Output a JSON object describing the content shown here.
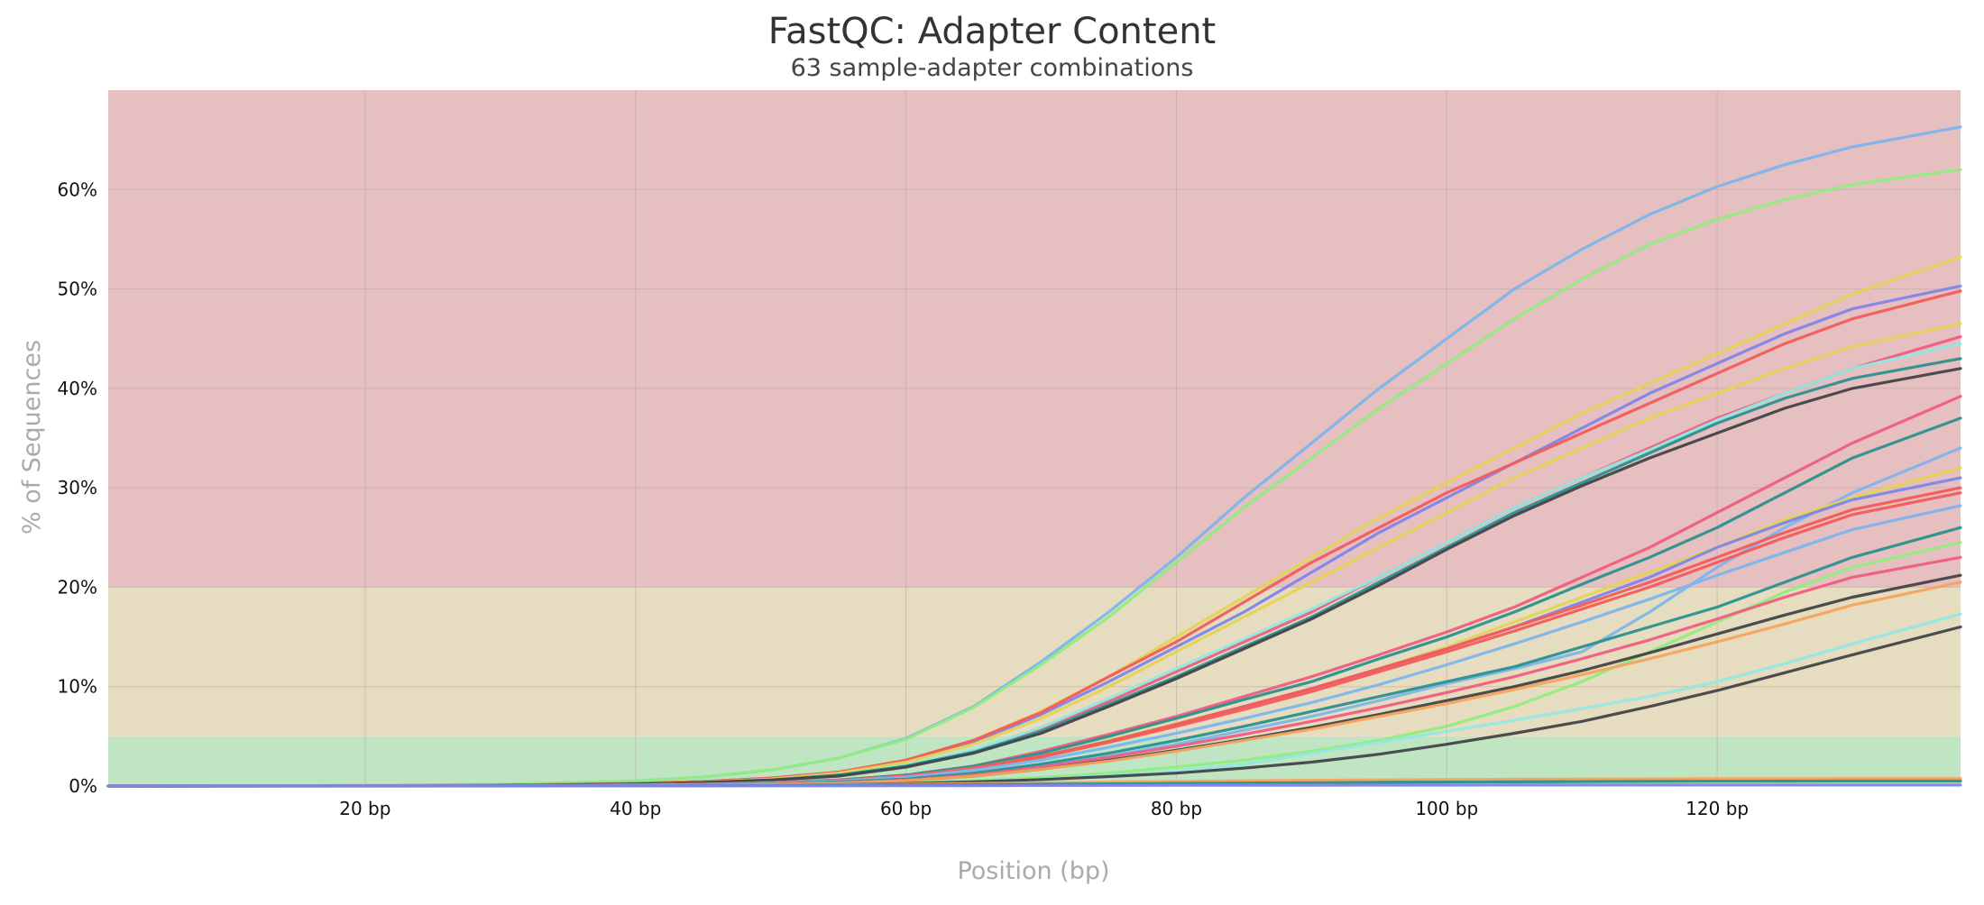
{
  "chart_data": {
    "type": "line",
    "title": "FastQC: Adapter Content",
    "subtitle": "63 sample-adapter combinations",
    "xlabel": "Position (bp)",
    "ylabel": "% of Sequences",
    "xlim": [
      1,
      138
    ],
    "ylim": [
      0,
      70
    ],
    "x_ticks": [
      20,
      40,
      60,
      80,
      100,
      120
    ],
    "x_tick_labels": [
      "20 bp",
      "40 bp",
      "60 bp",
      "80 bp",
      "100 bp",
      "120 bp"
    ],
    "y_ticks": [
      0,
      10,
      20,
      30,
      40,
      50,
      60
    ],
    "y_tick_labels": [
      "0%",
      "10%",
      "20%",
      "30%",
      "40%",
      "50%",
      "60%"
    ],
    "grid": true,
    "legend": "none",
    "bands": [
      {
        "from": 0,
        "to": 5,
        "color": "#c0e5c3"
      },
      {
        "from": 5,
        "to": 20,
        "color": "#e6dcbf"
      },
      {
        "from": 20,
        "to": 70,
        "color": "#e6bfc0"
      }
    ],
    "x": [
      1,
      10,
      20,
      30,
      40,
      45,
      50,
      55,
      60,
      65,
      70,
      75,
      80,
      85,
      90,
      95,
      100,
      105,
      110,
      115,
      120,
      125,
      130,
      138
    ],
    "series": [
      {
        "color": "#7cb5ec",
        "values": [
          0,
          0.02,
          0.05,
          0.15,
          0.5,
          0.9,
          1.6,
          2.8,
          4.8,
          8.0,
          12.5,
          17.5,
          23.0,
          29.0,
          34.5,
          40.0,
          45.0,
          50.0,
          54.0,
          57.5,
          60.3,
          62.5,
          64.3,
          66.3
        ]
      },
      {
        "color": "#90ed7d",
        "values": [
          0,
          0.02,
          0.05,
          0.15,
          0.5,
          0.9,
          1.6,
          2.8,
          4.7,
          7.9,
          12.2,
          17.0,
          22.5,
          28.0,
          33.0,
          38.0,
          42.5,
          47.0,
          51.0,
          54.5,
          57.0,
          59.0,
          60.5,
          62.0
        ]
      },
      {
        "color": "#e4d354",
        "values": [
          0,
          0.01,
          0.03,
          0.08,
          0.25,
          0.45,
          0.8,
          1.4,
          2.6,
          4.6,
          7.5,
          11.0,
          15.0,
          19.0,
          23.0,
          27.0,
          30.5,
          34.0,
          37.5,
          40.5,
          43.5,
          46.5,
          49.5,
          53.2
        ]
      },
      {
        "color": "#8085e9",
        "values": [
          0,
          0.01,
          0.03,
          0.08,
          0.25,
          0.45,
          0.8,
          1.4,
          2.5,
          4.4,
          7.2,
          10.5,
          14.0,
          17.5,
          21.5,
          25.5,
          29.0,
          32.5,
          36.0,
          39.5,
          42.5,
          45.5,
          48.0,
          50.3
        ]
      },
      {
        "color": "#f45b5b",
        "values": [
          0,
          0.01,
          0.03,
          0.08,
          0.25,
          0.45,
          0.8,
          1.4,
          2.6,
          4.6,
          7.4,
          11.0,
          14.5,
          18.5,
          22.5,
          26.0,
          29.5,
          32.5,
          35.5,
          38.5,
          41.5,
          44.5,
          47.0,
          49.8
        ]
      },
      {
        "color": "#e4d354",
        "values": [
          0,
          0.01,
          0.03,
          0.08,
          0.2,
          0.4,
          0.7,
          1.3,
          2.4,
          4.2,
          6.8,
          10.0,
          13.5,
          17.0,
          20.5,
          24.0,
          27.5,
          31.0,
          34.0,
          37.0,
          39.5,
          42.0,
          44.2,
          46.5
        ]
      },
      {
        "color": "#f15c80",
        "values": [
          0,
          0.01,
          0.02,
          0.06,
          0.2,
          0.35,
          0.6,
          1.1,
          2.0,
          3.5,
          5.8,
          8.5,
          11.5,
          14.5,
          17.5,
          21.0,
          24.5,
          28.0,
          31.0,
          34.0,
          37.0,
          39.5,
          42.0,
          45.2
        ]
      },
      {
        "color": "#91e8e1",
        "values": [
          0,
          0.01,
          0.02,
          0.06,
          0.2,
          0.35,
          0.6,
          1.1,
          2.1,
          3.6,
          5.9,
          8.8,
          11.8,
          14.8,
          17.8,
          21.0,
          24.5,
          28.0,
          31.0,
          33.8,
          36.8,
          39.5,
          42.0,
          44.5
        ]
      },
      {
        "color": "#2b908f",
        "values": [
          0,
          0.01,
          0.02,
          0.06,
          0.2,
          0.35,
          0.6,
          1.1,
          2.0,
          3.4,
          5.5,
          8.2,
          11.0,
          14.0,
          17.0,
          20.5,
          24.0,
          27.5,
          30.5,
          33.5,
          36.5,
          39.0,
          41.0,
          43.0
        ]
      },
      {
        "color": "#434348",
        "values": [
          0,
          0.01,
          0.02,
          0.06,
          0.2,
          0.35,
          0.6,
          1.0,
          1.9,
          3.3,
          5.3,
          8.0,
          10.8,
          13.8,
          16.8,
          20.2,
          23.8,
          27.2,
          30.2,
          33.0,
          35.5,
          38.0,
          40.0,
          42.0
        ]
      },
      {
        "color": "#f15c80",
        "values": [
          0,
          0.01,
          0.02,
          0.04,
          0.12,
          0.2,
          0.35,
          0.6,
          1.1,
          2.0,
          3.5,
          5.2,
          7.0,
          9.0,
          11.0,
          13.2,
          15.5,
          18.0,
          21.0,
          24.0,
          27.5,
          31.0,
          34.5,
          39.2
        ]
      },
      {
        "color": "#2b908f",
        "values": [
          0,
          0.01,
          0.02,
          0.04,
          0.12,
          0.2,
          0.35,
          0.6,
          1.1,
          2.0,
          3.3,
          5.0,
          6.8,
          8.7,
          10.5,
          12.8,
          15.0,
          17.5,
          20.3,
          23.0,
          26.0,
          29.5,
          33.0,
          37.0
        ]
      },
      {
        "color": "#7cb5ec",
        "values": [
          0,
          0.01,
          0.01,
          0.03,
          0.08,
          0.15,
          0.25,
          0.4,
          0.7,
          1.2,
          2.0,
          3.0,
          4.2,
          5.6,
          7.0,
          8.6,
          10.3,
          11.8,
          13.5,
          17.5,
          22.0,
          26.0,
          29.5,
          34.0
        ]
      },
      {
        "color": "#e4d354",
        "values": [
          0,
          0.01,
          0.01,
          0.03,
          0.1,
          0.17,
          0.3,
          0.55,
          1.0,
          1.8,
          3.0,
          4.6,
          6.3,
          8.0,
          9.8,
          11.8,
          14.0,
          16.5,
          19.0,
          21.5,
          24.0,
          26.8,
          29.0,
          32.0
        ]
      },
      {
        "color": "#8085e9",
        "values": [
          0,
          0.01,
          0.01,
          0.03,
          0.1,
          0.17,
          0.3,
          0.55,
          1.0,
          1.8,
          3.0,
          4.5,
          6.2,
          8.0,
          9.8,
          11.8,
          13.8,
          16.0,
          18.5,
          21.0,
          24.0,
          26.5,
          28.8,
          31.0
        ]
      },
      {
        "color": "#f45b5b",
        "values": [
          0,
          0.01,
          0.01,
          0.03,
          0.1,
          0.17,
          0.3,
          0.55,
          1.0,
          1.8,
          3.0,
          4.5,
          6.2,
          8.0,
          9.8,
          11.8,
          13.8,
          16.0,
          18.2,
          20.5,
          23.0,
          25.5,
          27.8,
          30.0
        ]
      },
      {
        "color": "#f45b5b",
        "values": [
          0,
          0.01,
          0.01,
          0.03,
          0.1,
          0.17,
          0.3,
          0.55,
          0.95,
          1.7,
          2.9,
          4.4,
          6.0,
          7.7,
          9.5,
          11.5,
          13.5,
          15.6,
          17.8,
          20.0,
          22.5,
          25.0,
          27.3,
          29.5
        ]
      },
      {
        "color": "#7cb5ec",
        "values": [
          0,
          0.01,
          0.01,
          0.03,
          0.09,
          0.15,
          0.27,
          0.5,
          0.9,
          1.6,
          2.6,
          3.9,
          5.3,
          6.8,
          8.4,
          10.2,
          12.2,
          14.3,
          16.5,
          18.8,
          21.2,
          23.5,
          25.8,
          28.2
        ]
      },
      {
        "color": "#2b908f",
        "values": [
          0,
          0.01,
          0.01,
          0.02,
          0.07,
          0.12,
          0.2,
          0.4,
          0.7,
          1.3,
          2.2,
          3.3,
          4.6,
          6.0,
          7.5,
          9.0,
          10.5,
          12.0,
          14.0,
          16.0,
          18.0,
          20.5,
          23.0,
          26.0
        ]
      },
      {
        "color": "#90ed7d",
        "values": [
          0,
          0.01,
          0.01,
          0.02,
          0.05,
          0.08,
          0.12,
          0.2,
          0.35,
          0.55,
          0.85,
          1.3,
          1.9,
          2.6,
          3.5,
          4.6,
          6.0,
          8.0,
          10.5,
          13.5,
          16.5,
          19.5,
          22.0,
          24.5
        ]
      },
      {
        "color": "#f15c80",
        "values": [
          0,
          0.01,
          0.01,
          0.02,
          0.06,
          0.1,
          0.18,
          0.32,
          0.6,
          1.1,
          1.9,
          2.9,
          4.0,
          5.2,
          6.5,
          7.9,
          9.4,
          11.0,
          12.8,
          14.7,
          16.8,
          19.0,
          21.0,
          23.0
        ]
      },
      {
        "color": "#434348",
        "values": [
          0,
          0.01,
          0.01,
          0.02,
          0.05,
          0.09,
          0.16,
          0.3,
          0.55,
          1.0,
          1.7,
          2.6,
          3.6,
          4.7,
          5.9,
          7.2,
          8.6,
          10.0,
          11.6,
          13.4,
          15.3,
          17.2,
          19.0,
          21.2
        ]
      },
      {
        "color": "#f7a35c",
        "values": [
          0,
          0.01,
          0.01,
          0.02,
          0.05,
          0.09,
          0.16,
          0.3,
          0.55,
          1.0,
          1.7,
          2.5,
          3.5,
          4.6,
          5.7,
          7.0,
          8.3,
          9.7,
          11.2,
          12.8,
          14.5,
          16.3,
          18.2,
          20.5
        ]
      },
      {
        "color": "#91e8e1",
        "values": [
          0,
          0.01,
          0.01,
          0.02,
          0.04,
          0.06,
          0.1,
          0.16,
          0.28,
          0.45,
          0.7,
          1.05,
          1.5,
          2.2,
          3.3,
          4.4,
          5.5,
          6.6,
          7.8,
          9.0,
          10.5,
          12.3,
          14.3,
          17.3
        ]
      },
      {
        "color": "#434348",
        "values": [
          0,
          0,
          0.01,
          0.01,
          0.03,
          0.05,
          0.08,
          0.14,
          0.25,
          0.42,
          0.65,
          0.95,
          1.3,
          1.8,
          2.4,
          3.2,
          4.2,
          5.3,
          6.5,
          8.0,
          9.6,
          11.4,
          13.2,
          16.0
        ]
      },
      {
        "color": "#f7a35c",
        "values": [
          0,
          0,
          0.01,
          0.02,
          0.04,
          0.06,
          0.08,
          0.12,
          0.18,
          0.25,
          0.32,
          0.4,
          0.47,
          0.53,
          0.58,
          0.62,
          0.65,
          0.68,
          0.7,
          0.72,
          0.73,
          0.74,
          0.75,
          0.75
        ]
      },
      {
        "color": "#2b908f",
        "values": [
          0,
          0,
          0,
          0.01,
          0.02,
          0.03,
          0.05,
          0.07,
          0.1,
          0.14,
          0.18,
          0.22,
          0.26,
          0.3,
          0.34,
          0.37,
          0.4,
          0.42,
          0.44,
          0.46,
          0.48,
          0.49,
          0.5,
          0.5
        ]
      },
      {
        "color": "#8085e9",
        "values": [
          0,
          0,
          0,
          0,
          0.01,
          0.01,
          0.02,
          0.02,
          0.03,
          0.04,
          0.05,
          0.06,
          0.07,
          0.08,
          0.08,
          0.09,
          0.09,
          0.1,
          0.1,
          0.1,
          0.1,
          0.1,
          0.1,
          0.1
        ]
      }
    ]
  }
}
